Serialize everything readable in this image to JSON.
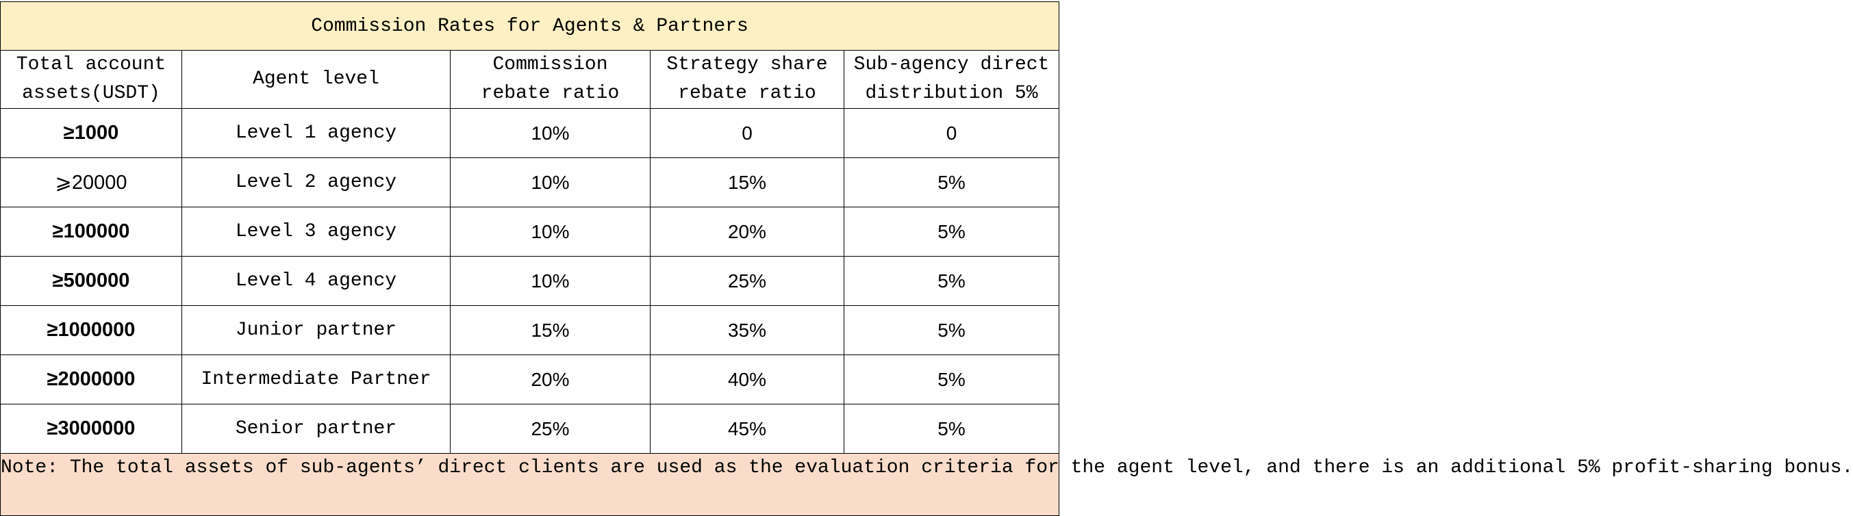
{
  "title": "Commission Rates for Agents & Partners",
  "columns": [
    {
      "line1": "Total account",
      "line2": "assets(USDT)"
    },
    {
      "line1": "Agent level",
      "line2": ""
    },
    {
      "line1": "Commission",
      "line2": "rebate ratio"
    },
    {
      "line1": "Strategy share",
      "line2": "rebate ratio"
    },
    {
      "line1": "Sub-agency direct",
      "line2": "distribution 5%"
    }
  ],
  "rows": [
    {
      "assets": "≥1000",
      "level": "Level 1 agency",
      "commission": "10%",
      "strategy": "0",
      "subagency": "0"
    },
    {
      "assets": "⩾20000",
      "level": "Level 2 agency",
      "commission": "10%",
      "strategy": "15%",
      "subagency": "5%"
    },
    {
      "assets": "≥100000",
      "level": "Level 3 agency",
      "commission": "10%",
      "strategy": "20%",
      "subagency": "5%"
    },
    {
      "assets": "≥500000",
      "level": "Level 4 agency",
      "commission": "10%",
      "strategy": "25%",
      "subagency": "5%"
    },
    {
      "assets": "≥1000000",
      "level": "Junior partner",
      "commission": "15%",
      "strategy": "35%",
      "subagency": "5%"
    },
    {
      "assets": "≥2000000",
      "level": "Intermediate Partner",
      "commission": "20%",
      "strategy": "40%",
      "subagency": "5%"
    },
    {
      "assets": "≥3000000",
      "level": "Senior partner",
      "commission": "25%",
      "strategy": "45%",
      "subagency": "5%"
    }
  ],
  "note": "Note: The total assets of sub-agents’ direct clients are used as the evaluation criteria for the agent level, and there is an additional 5% profit-sharing bonus.",
  "colors": {
    "title_bg": "#fdf0c4",
    "note_bg": "#fbdccb",
    "grid_line": "#000000"
  }
}
